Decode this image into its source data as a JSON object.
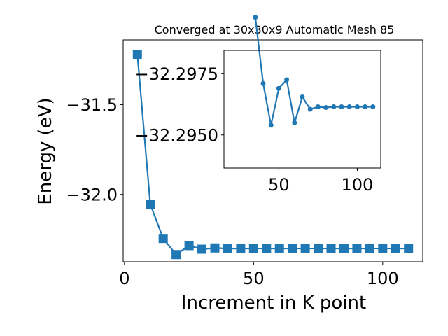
{
  "chart_data": [
    {
      "type": "line",
      "title": "Converged at 30x30x9 Automatic Mesh 85",
      "xlabel": "Increment in K point",
      "ylabel": "Energy (eV)",
      "xlim": [
        -0.5,
        115.5
      ],
      "ylim": [
        -32.375,
        -31.14
      ],
      "xticks": [
        0,
        50,
        100
      ],
      "xtick_labels": [
        "0",
        "50",
        "100"
      ],
      "yticks": [
        -32.0,
        -31.5
      ],
      "ytick_labels": [
        "−32.0",
        "−31.5"
      ],
      "grid": false,
      "marker": "square",
      "color": "#1f77b4",
      "series": [
        {
          "x": [
            5,
            10,
            15,
            20,
            25,
            30,
            35,
            40,
            45,
            50,
            55,
            60,
            65,
            70,
            75,
            80,
            85,
            90,
            95,
            100,
            105,
            110
          ],
          "y": [
            -31.22,
            -32.055,
            -32.245,
            -32.335,
            -32.285,
            -32.305,
            -32.298,
            -32.3015,
            -32.3012,
            -32.3012,
            -32.3012,
            -32.3012,
            -32.3012,
            -32.3012,
            -32.3012,
            -32.3012,
            -32.3012,
            -32.3012,
            -32.3012,
            -32.3012,
            -32.3012,
            -32.3012
          ]
        }
      ]
    },
    {
      "type": "line",
      "inset": true,
      "xlim": [
        15,
        115
      ],
      "ylim": [
        -32.29365,
        -32.29845
      ],
      "xticks": [
        50,
        100
      ],
      "xtick_labels": [
        "50",
        "100"
      ],
      "yticks": [
        -32.2975,
        -32.295
      ],
      "ytick_labels": [
        "−32.2975",
        "−32.2950"
      ],
      "grid": false,
      "marker": "circle",
      "color": "#1f77b4",
      "series": [
        {
          "x": [
            35,
            40,
            45,
            50,
            55,
            60,
            65,
            70,
            75,
            80,
            85,
            90,
            95,
            100,
            105,
            110
          ],
          "y": [
            -32.2998,
            -32.2971,
            -32.2954,
            -32.2969,
            -32.29725,
            -32.2955,
            -32.29655,
            -32.29605,
            -32.29615,
            -32.29612,
            -32.29615,
            -32.29615,
            -32.29615,
            -32.29615,
            -32.29615,
            -32.29615
          ]
        }
      ]
    }
  ]
}
